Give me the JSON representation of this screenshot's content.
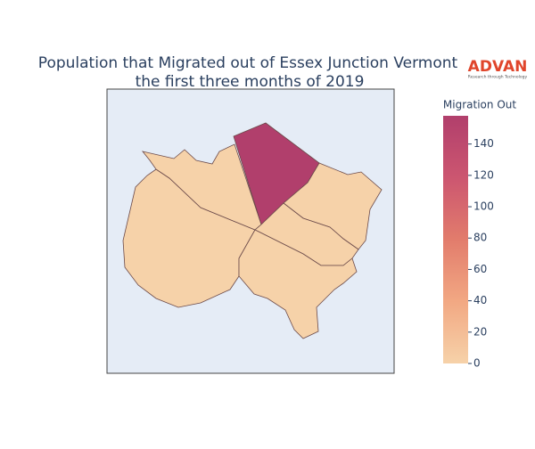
{
  "chart_data": {
    "type": "choropleth",
    "title": [
      "Population that Migrated out of Essex Junction Vermont",
      "the first three months of 2019"
    ],
    "logo": {
      "name": "ADVAN",
      "tagline": "Research through Technology"
    },
    "colorbar_title": "Migration Out",
    "values": [
      0,
      0,
      158,
      0,
      0,
      0
    ],
    "zlim": [
      0,
      158
    ],
    "zticks": [
      0,
      20,
      40,
      60,
      80,
      100,
      120,
      140
    ],
    "colorscale": [
      "#f6d2a9",
      "#f2a883",
      "#e27c6c",
      "#cc5670",
      "#b13f6c"
    ],
    "border_color": "#6b4a4a",
    "background": "#e5ecf6"
  }
}
